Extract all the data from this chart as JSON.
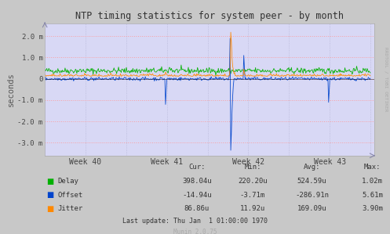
{
  "title": "NTP timing statistics for system peer - by month",
  "ylabel": "seconds",
  "background_color": "#c8c8c8",
  "plot_bg_color": "#d8d8f5",
  "grid_color_h": "#ff9999",
  "grid_color_v": "#ccccdd",
  "ylim": [
    -0.0036,
    0.0026
  ],
  "yticks": [
    -0.003,
    -0.002,
    -0.001,
    0.0,
    0.001,
    0.002
  ],
  "ytick_labels": [
    "-3.0 m",
    "-2.0 m",
    "-1.0 m",
    "0",
    "1.0 m",
    "2.0 m"
  ],
  "x_week_labels": [
    "Week 40",
    "Week 41",
    "Week 42",
    "Week 43"
  ],
  "delay_color": "#00b000",
  "offset_color": "#0044cc",
  "jitter_color": "#ff8800",
  "zero_line_color": "#000000",
  "right_label": "RRDTOOL / TOBI OETIKER",
  "table_headers": [
    "Cur:",
    "Min:",
    "Avg:",
    "Max:"
  ],
  "table_rows": [
    [
      "Delay",
      "398.04u",
      "220.20u",
      "524.59u",
      "1.02m"
    ],
    [
      "Offset",
      "-14.94u",
      "-3.71m",
      "-286.91n",
      "5.61m"
    ],
    [
      "Jitter",
      "86.86u",
      "11.92u",
      "169.09u",
      "3.90m"
    ]
  ],
  "legend_colors": [
    "#00b000",
    "#0044cc",
    "#ff8800"
  ],
  "last_update": "Last update: Thu Jan  1 01:00:00 1970",
  "munin_version": "Munin 2.0.75",
  "n_points": 500,
  "seed": 42
}
